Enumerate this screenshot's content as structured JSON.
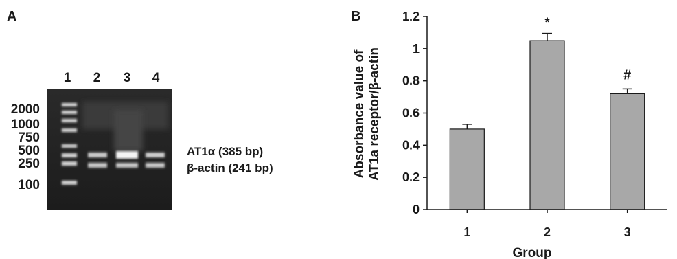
{
  "panel_a": {
    "letter": "A",
    "lanes": [
      "1",
      "2",
      "3",
      "4"
    ],
    "markers": [
      "2000",
      "1000",
      "750",
      "500",
      "250",
      "100"
    ],
    "bands": [
      "AT1α (385 bp)",
      "β-actin (241 bp)"
    ]
  },
  "panel_b": {
    "letter": "B"
  },
  "chart_data": {
    "type": "bar",
    "categories": [
      "1",
      "2",
      "3"
    ],
    "values": [
      0.5,
      1.05,
      0.72
    ],
    "errors": [
      0.03,
      0.045,
      0.03
    ],
    "annotations": [
      "",
      "*",
      "#"
    ],
    "title": "",
    "xlabel": "Group",
    "ylabel_lines": [
      "Absorbance value of",
      "AT1a receptor/β-actin"
    ],
    "ylim": [
      0,
      1.2
    ],
    "yticks": [
      0,
      0.2,
      0.4,
      0.6,
      0.8,
      1,
      1.2
    ],
    "ytick_labels": [
      "0",
      "0.2",
      "0.4",
      "0.6",
      "0.8",
      "1",
      "1.2"
    ],
    "grid": false,
    "bar_color": "#a8a8a8"
  }
}
